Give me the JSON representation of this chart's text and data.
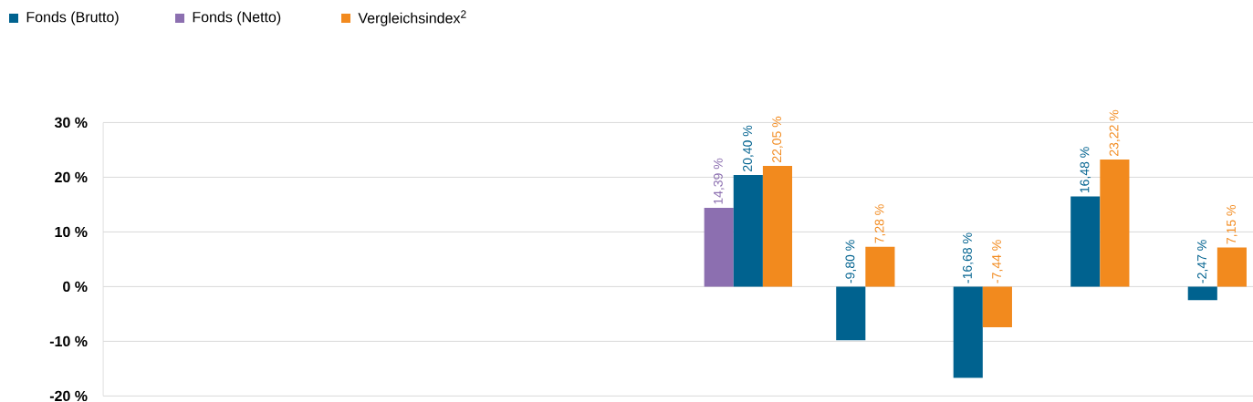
{
  "chart_data": {
    "type": "bar",
    "categories": [
      null,
      null,
      null,
      null,
      null,
      null,
      null,
      null,
      null,
      null
    ],
    "series": [
      {
        "name": "Fonds (Netto)",
        "color": "#8c6fb0",
        "values": [
          null,
          null,
          null,
          null,
          null,
          14.39,
          null,
          null,
          null,
          null
        ],
        "value_labels": [
          null,
          null,
          null,
          null,
          null,
          "14,39 %",
          null,
          null,
          null,
          null
        ]
      },
      {
        "name": "Fonds (Brutto)",
        "color": "#00628f",
        "values": [
          null,
          null,
          null,
          null,
          null,
          20.4,
          -9.8,
          -16.68,
          16.48,
          -2.47
        ],
        "value_labels": [
          null,
          null,
          null,
          null,
          null,
          "20,40 %",
          "-9,80 %",
          "-16,68 %",
          "16,48 %",
          "-2,47 %"
        ]
      },
      {
        "name": "Vergleichsindex$^{2}$",
        "color": "#f28a1e",
        "values": [
          null,
          null,
          null,
          null,
          null,
          22.05,
          7.28,
          -7.44,
          23.22,
          7.15
        ],
        "value_labels": [
          null,
          null,
          null,
          null,
          null,
          "22,05 %",
          "7,28 %",
          "-7,44 %",
          "23,22 %",
          "7,15 %"
        ]
      }
    ],
    "ylim": [
      -20,
      30
    ],
    "yticks": [
      {
        "value": -20,
        "label": "-20 %"
      },
      {
        "value": -10,
        "label": "-10 %"
      },
      {
        "value": 0,
        "label": "0 %"
      },
      {
        "value": 10,
        "label": "10 %"
      },
      {
        "value": 20,
        "label": "20 %"
      },
      {
        "value": 30,
        "label": "30 %"
      }
    ],
    "grid": "y",
    "legend": "top left",
    "tick_labels": "y"
  }
}
